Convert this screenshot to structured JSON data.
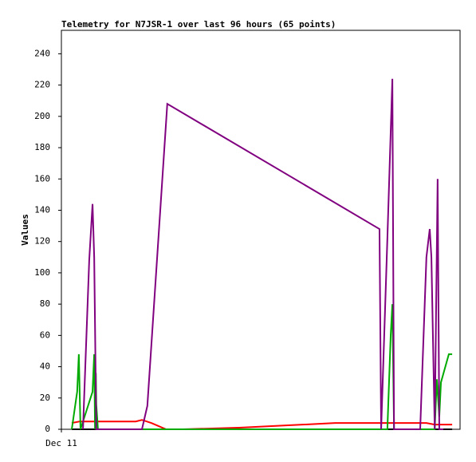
{
  "chart_data": {
    "type": "line",
    "title": "Telemetry for N7JSR-1 over last 96 hours (65 points)",
    "y_label": "Values",
    "xlim": [
      0,
      96
    ],
    "xticks": [
      {
        "value": 0,
        "label": "Dec 11"
      }
    ],
    "ylim": [
      0,
      255
    ],
    "yticks": [
      0,
      20,
      40,
      60,
      80,
      100,
      120,
      140,
      160,
      180,
      200,
      220,
      240
    ],
    "series": [
      {
        "color": "#000000",
        "x": [
          2.5,
          94.1
        ],
        "values": [
          0,
          0
        ]
      },
      {
        "color": "#ff0000",
        "x": [
          2.5,
          4.4,
          17.9,
          19.4,
          21.7,
          25.2,
          29.4,
          42.8,
          65.9,
          77.4,
          87.9,
          89.9,
          94.1
        ],
        "values": [
          4,
          5,
          5,
          6,
          4,
          0,
          0,
          1,
          4,
          4,
          4,
          3,
          3
        ]
      },
      {
        "color": "#00aa00",
        "x": [
          2.5,
          3.8,
          4.2,
          4.6,
          7.5,
          7.9,
          8.1,
          8.3,
          8.4,
          8.8,
          78.5,
          79.3,
          79.7,
          80.1,
          89.9,
          90.4,
          91.0,
          91.4,
          93.3,
          94.1
        ],
        "values": [
          0,
          24,
          48,
          0,
          24,
          48,
          0,
          36,
          16,
          0,
          0,
          60,
          80,
          0,
          0,
          32,
          8,
          30,
          48,
          48
        ]
      },
      {
        "color": "#800080",
        "x": [
          5.2,
          6.7,
          7.5,
          7.9,
          8.4,
          19.4,
          20.7,
          25.5,
          76.6,
          77.0,
          78.5,
          79.7,
          80.1,
          86.4,
          87.9,
          88.7,
          89.1,
          89.9,
          90.6,
          91.0,
          92.0
        ],
        "values": [
          0,
          108,
          144,
          110,
          0,
          0,
          15,
          208,
          128,
          0,
          122,
          224,
          0,
          0,
          110,
          128,
          110,
          0,
          160,
          0,
          0
        ]
      }
    ]
  }
}
